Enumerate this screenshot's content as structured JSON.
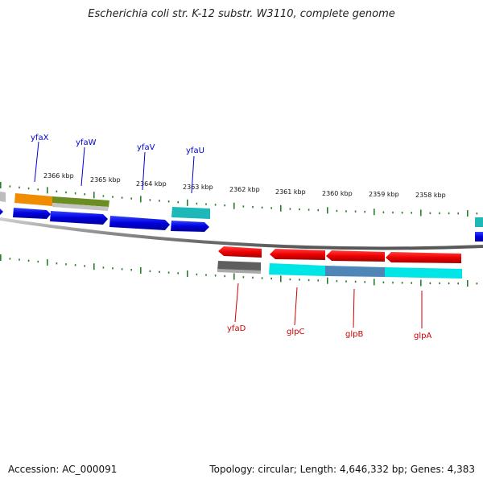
{
  "header": {
    "title": "Escherichia coli str. K-12 substr. W3110, complete genome"
  },
  "footer": {
    "accession": "Accession: AC_000091",
    "summary": "Topology: circular; Length: 4,646,332 bp; Genes: 4,383"
  },
  "scale": {
    "ticks": [
      "2366 kbp",
      "2365 kbp",
      "2364 kbp",
      "2363 kbp",
      "2362 kbp",
      "2361 kbp",
      "2360 kbp",
      "2359 kbp",
      "2358 kbp"
    ]
  },
  "genes_forward": [
    {
      "name": "yfaX",
      "color": "#0000cc"
    },
    {
      "name": "yfaW",
      "color": "#0000cc"
    },
    {
      "name": "yfaV",
      "color": "#0000cc"
    },
    {
      "name": "yfaU",
      "color": "#0000cc"
    }
  ],
  "genes_reverse": [
    {
      "name": "yfaD",
      "color": "#cc0000"
    },
    {
      "name": "glpC",
      "color": "#cc0000"
    },
    {
      "name": "glpB",
      "color": "#cc0000"
    },
    {
      "name": "glpA",
      "color": "#cc0000"
    }
  ],
  "colors": {
    "backbone": "#888888",
    "tick": "#2a7d2a",
    "cds_forward": "#0000dd",
    "cds_reverse": "#ee0000",
    "orange": "#f08c00",
    "olive": "#6b8e23",
    "cyan": "#00e5e5",
    "teal": "#20b2aa",
    "steel": "#4682b4",
    "gray": "#666666"
  }
}
